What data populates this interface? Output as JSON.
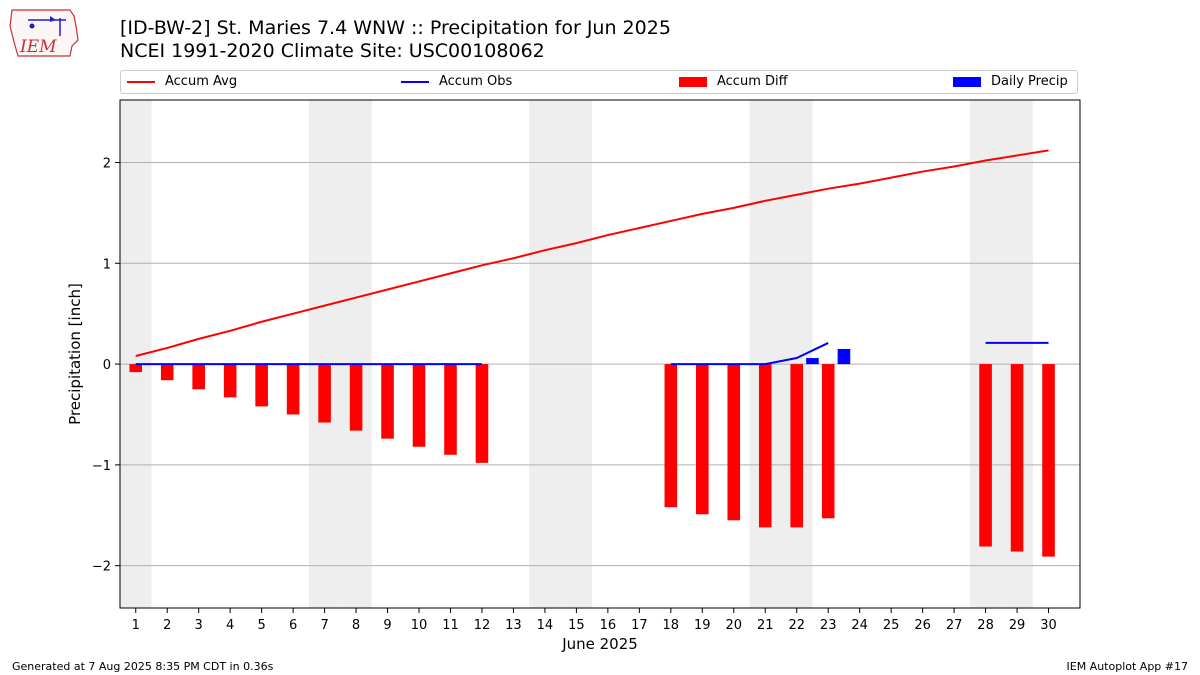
{
  "title_line1": "[ID-BW-2] St. Maries 7.4 WNW :: Precipitation for Jun 2025",
  "title_line2": "NCEI 1991-2020 Climate Site: USC00108062",
  "logo_text": "IEM",
  "footer_left": "Generated at 7 Aug 2025 8:35 PM CDT in 0.36s",
  "footer_right": "IEM Autoplot App #17",
  "colors": {
    "accum_avg": "#ff0000",
    "accum_obs": "#0000ff",
    "accum_diff": "#ff0000",
    "daily_precip": "#0000ff",
    "weekend_shade": "#eeeeee",
    "grid": "#b0b0b0"
  },
  "legend": [
    {
      "label": "Accum Avg",
      "kind": "line",
      "color": "#ff0000"
    },
    {
      "label": "Accum Obs",
      "kind": "line",
      "color": "#0000ff"
    },
    {
      "label": "Accum Diff",
      "kind": "patch",
      "color": "#ff0000"
    },
    {
      "label": "Daily Precip",
      "kind": "patch",
      "color": "#0000ff"
    }
  ],
  "chart_data": {
    "type": "bar",
    "xlabel": "June 2025",
    "ylabel": "Precipitation [inch]",
    "xlim": [
      0.5,
      31.0
    ],
    "ylim": [
      -2.42,
      2.62
    ],
    "yticks": [
      2,
      1,
      0,
      -1,
      -2
    ],
    "ytick_labels": [
      "2",
      "1",
      "0",
      "−1",
      "−2"
    ],
    "xticks": [
      "1",
      "2",
      "3",
      "4",
      "5",
      "6",
      "7",
      "8",
      "9",
      "10",
      "11",
      "12",
      "13",
      "14",
      "15",
      "16",
      "17",
      "18",
      "19",
      "20",
      "21",
      "22",
      "23",
      "24",
      "25",
      "26",
      "27",
      "28",
      "29",
      "30"
    ],
    "grid": "y",
    "weekend_days": [
      1,
      7,
      8,
      14,
      15,
      21,
      22,
      28,
      29
    ],
    "series": [
      {
        "name": "Accum Avg",
        "type": "line",
        "x": [
          1,
          2,
          3,
          4,
          5,
          6,
          7,
          8,
          9,
          10,
          11,
          12,
          13,
          14,
          15,
          16,
          17,
          18,
          19,
          20,
          21,
          22,
          23,
          24,
          25,
          26,
          27,
          28,
          29,
          30
        ],
        "values": [
          0.08,
          0.16,
          0.25,
          0.33,
          0.42,
          0.5,
          0.58,
          0.66,
          0.74,
          0.82,
          0.9,
          0.98,
          1.05,
          1.13,
          1.2,
          1.28,
          1.35,
          1.42,
          1.49,
          1.55,
          1.62,
          1.68,
          1.74,
          1.79,
          1.85,
          1.91,
          1.96,
          2.02,
          2.07,
          2.12
        ]
      },
      {
        "name": "Accum Obs",
        "type": "line",
        "x": [
          1,
          2,
          3,
          4,
          5,
          6,
          7,
          8,
          9,
          10,
          11,
          12,
          13,
          14,
          15,
          16,
          17,
          18,
          19,
          20,
          21,
          22,
          23,
          24,
          25,
          26,
          27,
          28,
          29,
          30
        ],
        "values": [
          0,
          0,
          0,
          0,
          0,
          0,
          0,
          0,
          0,
          0,
          0,
          0,
          null,
          null,
          null,
          null,
          null,
          0,
          0,
          0,
          0,
          0.06,
          0.21,
          null,
          null,
          null,
          null,
          0.21,
          0.21,
          0.21
        ]
      },
      {
        "name": "Accum Diff",
        "type": "bar",
        "x": [
          1,
          2,
          3,
          4,
          5,
          6,
          7,
          8,
          9,
          10,
          11,
          12,
          18,
          19,
          20,
          21,
          22,
          23,
          28,
          29,
          30
        ],
        "values": [
          -0.08,
          -0.16,
          -0.25,
          -0.33,
          -0.42,
          -0.5,
          -0.58,
          -0.66,
          -0.74,
          -0.82,
          -0.9,
          -0.98,
          -1.42,
          -1.49,
          -1.55,
          -1.62,
          -1.62,
          -1.53,
          -1.81,
          -1.86,
          -1.91
        ]
      },
      {
        "name": "Daily Precip",
        "type": "bar",
        "x": [
          22,
          23
        ],
        "values": [
          0.06,
          0.15
        ]
      }
    ]
  }
}
